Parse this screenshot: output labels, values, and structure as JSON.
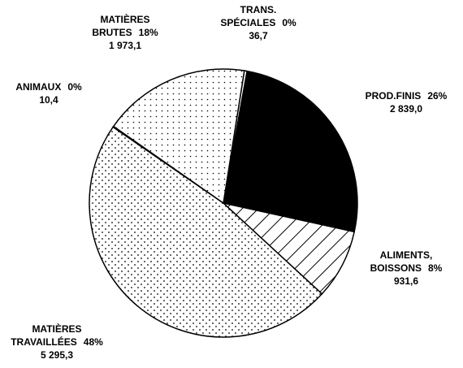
{
  "chart_data": {
    "type": "pie",
    "categories": [
      [
        "TRANS.",
        "SPÉCIALES"
      ],
      [
        "PROD.FINIS"
      ],
      [
        "ALIMENTS,",
        "BOISSONS"
      ],
      [
        "MATIÈRES",
        "TRAVAILLÉES"
      ],
      [
        "ANIMAUX"
      ],
      [
        "MATIÈRES",
        "BRUTES"
      ]
    ],
    "percent_labels": [
      "0%",
      "26%",
      "8%",
      "48%",
      "0%",
      "18%"
    ],
    "values": [
      36.7,
      2839.0,
      931.6,
      5295.3,
      10.4,
      1973.1
    ],
    "value_labels": [
      "36,7",
      "2 839,0",
      "931,6",
      "5 295,3",
      "10,4",
      "1 973,1"
    ]
  }
}
